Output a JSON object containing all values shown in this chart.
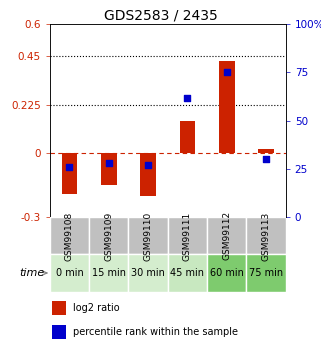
{
  "title": "GDS2583 / 2435",
  "samples": [
    "GSM99108",
    "GSM99109",
    "GSM99110",
    "GSM99111",
    "GSM99112",
    "GSM99113"
  ],
  "time_labels": [
    "0 min",
    "15 min",
    "30 min",
    "45 min",
    "60 min",
    "75 min"
  ],
  "time_colors": [
    "#d4edce",
    "#d4edce",
    "#d4edce",
    "#c8e8c0",
    "#7ecb6e",
    "#7ecb6e"
  ],
  "log2_ratio": [
    -0.19,
    -0.15,
    -0.2,
    0.15,
    0.43,
    0.02
  ],
  "percentile_rank": [
    26,
    28,
    27,
    62,
    75,
    30
  ],
  "ylim_left": [
    -0.3,
    0.6
  ],
  "ylim_right": [
    0,
    100
  ],
  "left_ticks": [
    -0.3,
    0,
    0.225,
    0.45,
    0.6
  ],
  "right_ticks": [
    0,
    25,
    50,
    75,
    100
  ],
  "left_tick_labels": [
    "-0.3",
    "0",
    "0.225",
    "0.45",
    "0.6"
  ],
  "right_tick_labels": [
    "0",
    "25",
    "50",
    "75",
    "100%"
  ],
  "hlines": [
    0.225,
    0.45
  ],
  "bar_color": "#cc2200",
  "dot_color": "#0000cc",
  "bg_color_gray": "#c0c0c0",
  "zero_line_color": "#cc2200",
  "title_fontsize": 10,
  "tick_fontsize": 7.5,
  "sample_fontsize": 6.5,
  "time_fontsize": 7,
  "legend_fontsize": 7
}
